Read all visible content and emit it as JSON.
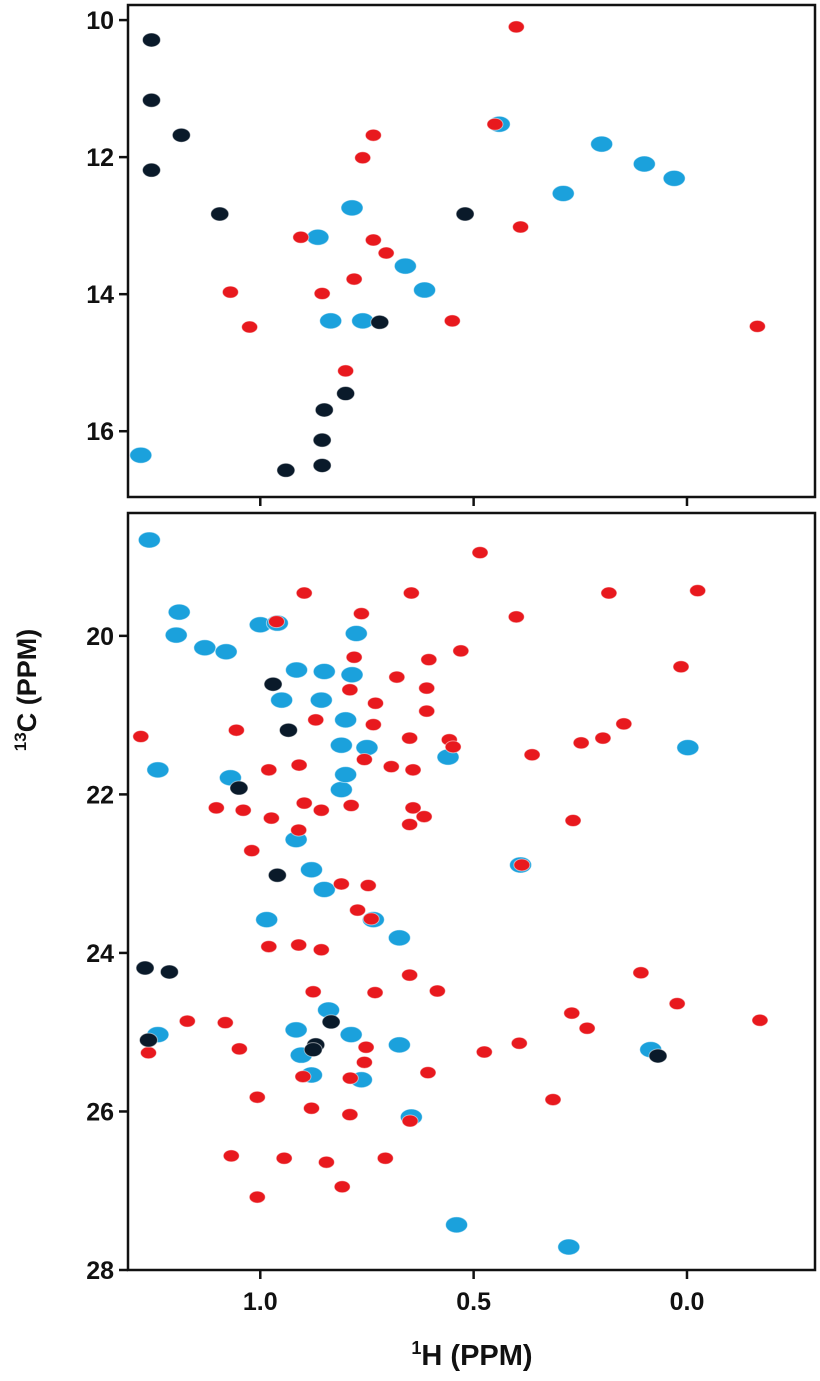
{
  "axis_labels": {
    "y_label_sup": "13",
    "y_label": "C (PPM)",
    "x_label_sup": "1",
    "x_label": "H (PPM)"
  },
  "chart_data": [
    {
      "type": "scatter",
      "xlim": [
        1.31,
        -0.3
      ],
      "ylim": [
        9.78,
        16.96
      ],
      "yticks": [
        10,
        12,
        14,
        16
      ],
      "xticks": [
        {
          "value": 1,
          "label": "1.0"
        },
        {
          "value": 0.5,
          "label": "0.5"
        },
        {
          "value": 0,
          "label": "0.0"
        }
      ],
      "xtick_labels": false,
      "series": [
        {
          "color": "#1ba1dc",
          "x": [
            0.44,
            0.29,
            0.66,
            0.615,
            0.865,
            0.785,
            0.835,
            1.28,
            0.03,
            0.76,
            0.2,
            0.1
          ],
          "y": [
            11.52,
            12.53,
            13.59,
            13.94,
            13.17,
            12.74,
            14.39,
            16.35,
            12.31,
            14.39,
            11.81,
            12.1
          ]
        },
        {
          "color": "#e8191e",
          "x": [
            0.4,
            0.45,
            0.735,
            0.76,
            0.39,
            0.735,
            0.705,
            0.855,
            0.78,
            1.07,
            1.025,
            0.55,
            -0.165,
            0.8,
            0.905
          ],
          "y": [
            10.1,
            11.52,
            11.68,
            12.01,
            13.02,
            13.21,
            13.4,
            13.99,
            13.78,
            13.97,
            14.48,
            14.39,
            14.47,
            15.12,
            13.17
          ]
        },
        {
          "color": "#0a1a2a",
          "x": [
            1.255,
            1.255,
            1.185,
            1.255,
            0.52,
            0.72,
            0.85,
            0.855,
            0.8,
            0.94,
            0.855,
            1.095
          ],
          "y": [
            10.29,
            11.17,
            11.68,
            12.19,
            12.83,
            14.41,
            15.69,
            16.13,
            15.45,
            16.57,
            16.5,
            12.83
          ]
        }
      ]
    },
    {
      "type": "scatter",
      "xlim": [
        1.31,
        -0.3
      ],
      "ylim": [
        18.45,
        28
      ],
      "yticks": [
        20,
        22,
        24,
        26,
        28
      ],
      "xticks": [
        {
          "value": 1,
          "label": "1.0"
        },
        {
          "value": 0.5,
          "label": "0.5"
        },
        {
          "value": 0,
          "label": "0.0"
        }
      ],
      "xtick_labels": true,
      "series": [
        {
          "color": "#1ba1dc",
          "x": [
            1.19,
            1.197,
            1.0,
            0.775,
            0.96,
            1.13,
            1.08,
            0.915,
            0.85,
            0.785,
            0.95,
            0.857,
            0.8,
            0.75,
            0.81,
            0.81,
            1.24,
            1.07,
            0.8,
            0.85,
            0.88,
            0.735,
            0.674,
            0.916,
            0.985,
            0.84,
            0.916,
            0.787,
            0.674,
            0.904,
            0.763,
            0.88,
            0.39,
            -0.002,
            0.56,
            1.24,
            0.085,
            0.646,
            0.54,
            0.277,
            1.26
          ],
          "y": [
            19.7,
            19.99,
            19.86,
            19.97,
            19.84,
            20.15,
            20.2,
            20.43,
            20.45,
            20.49,
            20.81,
            20.81,
            21.06,
            21.41,
            21.94,
            21.38,
            21.69,
            21.79,
            21.75,
            23.2,
            22.95,
            23.58,
            23.81,
            22.57,
            23.58,
            24.72,
            24.97,
            25.03,
            25.16,
            25.29,
            25.6,
            25.54,
            22.89,
            21.41,
            21.53,
            25.03,
            25.22,
            26.07,
            27.43,
            27.71,
            18.79
          ]
        },
        {
          "color": "#e8191e",
          "x": [
            0.485,
            -0.025,
            0.4,
            0.183,
            0.897,
            0.962,
            0.646,
            0.763,
            0.53,
            0.78,
            0.605,
            0.014,
            0.68,
            0.79,
            0.61,
            0.73,
            0.61,
            1.28,
            1.056,
            0.735,
            0.87,
            0.148,
            0.197,
            0.248,
            0.557,
            0.548,
            0.65,
            0.756,
            0.693,
            0.363,
            0.642,
            0.98,
            0.909,
            1.103,
            1.04,
            0.974,
            0.897,
            0.857,
            0.787,
            0.642,
            0.616,
            0.65,
            0.267,
            0.91,
            1.02,
            0.387,
            0.81,
            0.747,
            0.74,
            0.772,
            0.98,
            0.91,
            0.857,
            0.108,
            0.65,
            0.585,
            0.876,
            0.731,
            0.27,
            0.234,
            0.023,
            -0.171,
            1.171,
            1.082,
            1.049,
            0.475,
            0.393,
            1.262,
            0.752,
            0.314,
            1.007,
            0.9,
            0.789,
            0.607,
            0.88,
            0.649,
            0.79,
            1.068,
            0.944,
            0.845,
            0.707,
            0.808,
            1.007,
            0.756
          ],
          "y": [
            18.95,
            19.43,
            19.76,
            19.46,
            19.46,
            19.82,
            19.46,
            19.72,
            20.19,
            20.27,
            20.3,
            20.39,
            20.52,
            20.68,
            20.66,
            20.85,
            20.95,
            21.27,
            21.19,
            21.12,
            21.06,
            21.11,
            21.29,
            21.35,
            21.31,
            21.4,
            21.29,
            21.56,
            21.65,
            21.5,
            21.69,
            21.69,
            21.63,
            22.17,
            22.2,
            22.3,
            22.11,
            22.2,
            22.14,
            22.17,
            22.28,
            22.38,
            22.33,
            22.45,
            22.71,
            22.89,
            23.13,
            23.15,
            23.57,
            23.46,
            23.92,
            23.9,
            23.96,
            24.25,
            24.28,
            24.48,
            24.49,
            24.5,
            24.76,
            24.95,
            24.64,
            24.85,
            24.86,
            24.88,
            25.21,
            25.25,
            25.14,
            25.26,
            25.19,
            25.85,
            25.82,
            25.56,
            25.58,
            25.51,
            25.96,
            26.12,
            26.04,
            26.56,
            26.59,
            26.64,
            26.59,
            26.95,
            27.08,
            25.38
          ]
        },
        {
          "color": "#0a1a2a",
          "x": [
            0.97,
            0.934,
            1.05,
            0.96,
            1.27,
            1.213,
            1.262,
            0.87,
            0.834,
            0.068,
            0.876
          ],
          "y": [
            20.61,
            21.19,
            21.92,
            23.02,
            24.19,
            24.24,
            25.1,
            25.16,
            24.87,
            25.3,
            25.22
          ]
        }
      ]
    }
  ]
}
